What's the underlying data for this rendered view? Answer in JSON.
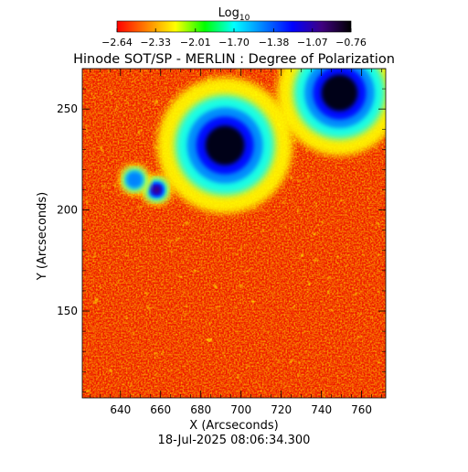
{
  "chart_data": {
    "type": "heatmap",
    "title": "Hinode SOT/SP - MERLIN : Degree of Polarization",
    "colorbar": {
      "label_main": "Log",
      "label_sub": "10",
      "ticks": [
        "-2.64",
        "-2.33",
        "-2.01",
        "-1.70",
        "-1.38",
        "-1.07",
        "-0.76"
      ],
      "range": [
        -2.64,
        -0.76
      ],
      "colormap": [
        "#ff0000",
        "#ff8000",
        "#ffff00",
        "#00ff00",
        "#00ffff",
        "#0080ff",
        "#0000ff",
        "#400080",
        "#000000"
      ]
    },
    "xlabel": "X (Arcseconds)",
    "ylabel": "Y (Arcseconds)",
    "xlim": [
      621,
      772
    ],
    "ylim": [
      107,
      270
    ],
    "xticks": [
      640,
      660,
      680,
      700,
      720,
      740,
      760
    ],
    "yticks": [
      150,
      200,
      250
    ],
    "timestamp": "18-Jul-2025 08:06:34.300",
    "features": [
      {
        "x": 692,
        "y": 232,
        "rx": 13,
        "ry": 13,
        "value": -0.76
      },
      {
        "x": 749,
        "y": 258,
        "rx": 12,
        "ry": 12,
        "value": -0.76
      },
      {
        "x": 658,
        "y": 210,
        "rx": 3,
        "ry": 3,
        "value": -1.07
      },
      {
        "x": 647,
        "y": 215,
        "rx": 3,
        "ry": 3,
        "value": -1.38
      }
    ]
  }
}
